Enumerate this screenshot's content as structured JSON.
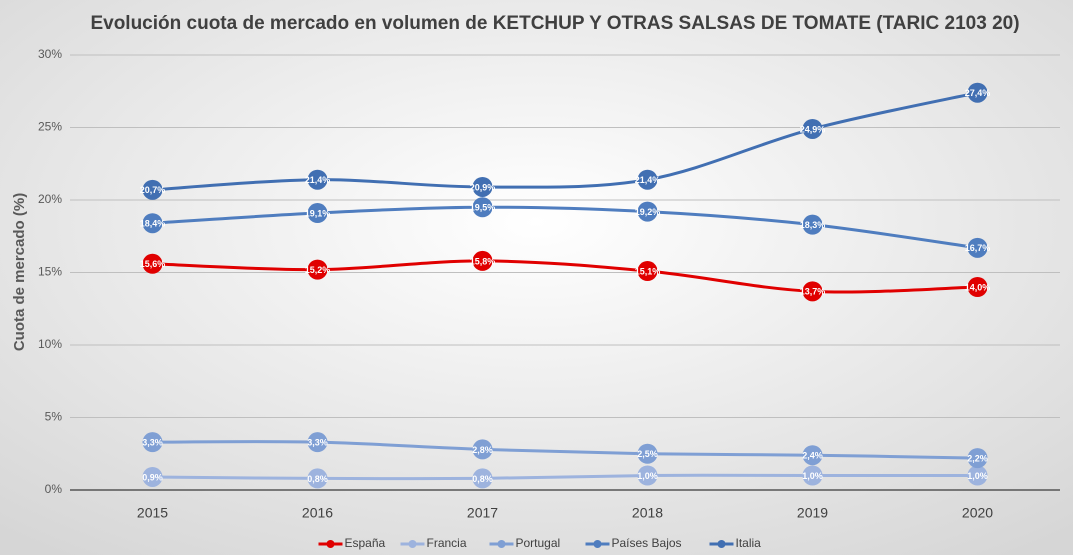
{
  "chart_data": {
    "type": "line",
    "title": "Evolución cuota de mercado en volumen de KETCHUP Y OTRAS SALSAS DE TOMATE (TARIC 2103 20)",
    "ylabel": "Cuota de mercado (%)",
    "categories": [
      "2015",
      "2016",
      "2017",
      "2018",
      "2019",
      "2020"
    ],
    "ylim": [
      0,
      30
    ],
    "yticks": [
      {
        "value": 0,
        "label": "0%"
      },
      {
        "value": 5,
        "label": "5%"
      },
      {
        "value": 10,
        "label": "10%"
      },
      {
        "value": 15,
        "label": "15%"
      },
      {
        "value": 20,
        "label": "20%"
      },
      {
        "value": 25,
        "label": "25%"
      },
      {
        "value": 30,
        "label": "30%"
      }
    ],
    "grid": true,
    "legend": "bottom",
    "series": [
      {
        "name": "España",
        "color": "#e00000",
        "values": [
          15.6,
          15.2,
          15.8,
          15.1,
          13.7,
          14.0
        ],
        "value_labels": [
          "15,6%",
          "15,2%",
          "15,8%",
          "15,1%",
          "13,7%",
          "14,0%"
        ]
      },
      {
        "name": "Francia",
        "color": "#9db3de",
        "values": [
          0.9,
          0.8,
          0.8,
          1.0,
          1.0,
          1.0
        ],
        "value_labels": [
          "0,9%",
          "0,8%",
          "0,8%",
          "1,0%",
          "1,0%",
          "1,0%"
        ]
      },
      {
        "name": "Portugal",
        "color": "#7f9fd4",
        "values": [
          3.3,
          3.3,
          2.8,
          2.5,
          2.4,
          2.2
        ],
        "value_labels": [
          "3,3%",
          "3,3%",
          "2,8%",
          "2,5%",
          "2,4%",
          "2,2%"
        ]
      },
      {
        "name": "Países Bajos",
        "color": "#4f7dbf",
        "values": [
          18.4,
          19.1,
          19.5,
          19.2,
          18.3,
          16.7
        ],
        "value_labels": [
          "18,4%",
          "19,1%",
          "19,5%",
          "19,2%",
          "18,3%",
          "16,7%"
        ]
      },
      {
        "name": "Italia",
        "color": "#416fb2",
        "values": [
          20.7,
          21.4,
          20.9,
          21.4,
          24.9,
          27.4
        ],
        "value_labels": [
          "20,7%",
          "21,4%",
          "20,9%",
          "21,4%",
          "24,9%",
          "27,4%"
        ]
      }
    ]
  }
}
